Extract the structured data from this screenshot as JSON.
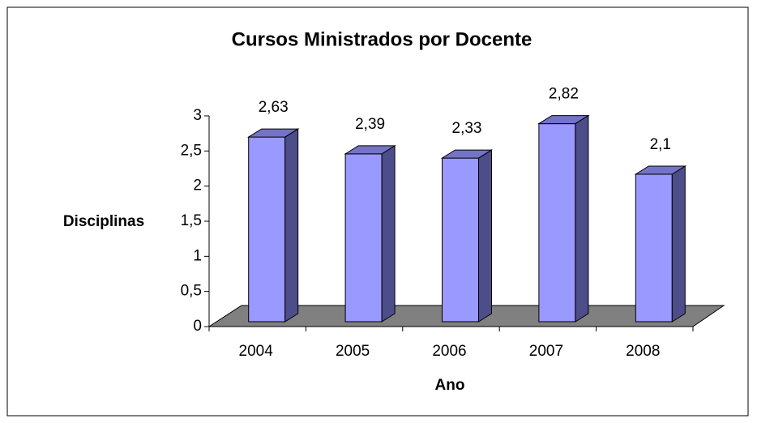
{
  "chart_data": {
    "type": "bar3d",
    "title": "Cursos Ministrados por Docente",
    "x_label": "Ano",
    "y_label": "Disciplinas",
    "categories": [
      "2004",
      "2005",
      "2006",
      "2007",
      "2008"
    ],
    "values": [
      2.63,
      2.39,
      2.33,
      2.82,
      2.1
    ],
    "value_labels": [
      "2,63",
      "2,39",
      "2,33",
      "2,82",
      "2,1"
    ],
    "color": "#9999ff",
    "ylim": [
      0,
      3
    ],
    "yticks": [
      0,
      {
        "value": 0.5,
        "label": "0,5"
      },
      1,
      {
        "value": 1.5,
        "label": "1,5"
      },
      2,
      {
        "value": 2.5,
        "label": "2,5"
      },
      3
    ]
  }
}
